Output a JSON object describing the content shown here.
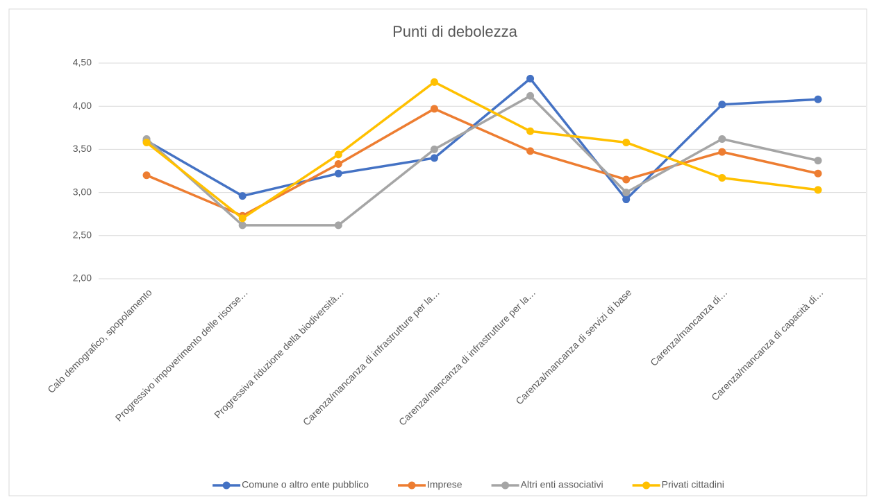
{
  "chart_data": {
    "type": "line",
    "title": "Punti di debolezza",
    "categories": [
      "Calo demografico, spopolamento",
      "Progressivo impoverimento delle risorse…",
      "Progressiva riduzione della biodiversità…",
      "Carenza/mancanza di infrastrutture per la…",
      "Carenza/mancanza di infrastrutture per la…",
      "Carenza/mancanza di servizi di base",
      "Carenza/mancanza di…",
      "Carenza/mancanza di capacità di…"
    ],
    "series": [
      {
        "name": "Comune o altro ente pubblico",
        "color": "#4472c4",
        "values": [
          3.6,
          2.96,
          3.22,
          3.4,
          4.32,
          2.92,
          4.02,
          4.08
        ]
      },
      {
        "name": "Imprese",
        "color": "#ed7d31",
        "values": [
          3.2,
          2.73,
          3.33,
          3.97,
          3.48,
          3.15,
          3.47,
          3.22
        ]
      },
      {
        "name": "Altri enti associativi",
        "color": "#a5a5a5",
        "values": [
          3.62,
          2.62,
          2.62,
          3.5,
          4.12,
          3.0,
          3.62,
          3.37
        ]
      },
      {
        "name": "Privati cittadini",
        "color": "#ffc000",
        "values": [
          3.58,
          2.7,
          3.44,
          4.28,
          3.71,
          3.58,
          3.17,
          3.03
        ]
      }
    ],
    "ylim": [
      2,
      4.5
    ],
    "yticks": [
      {
        "value": 2,
        "label": "2,00"
      },
      {
        "value": 2.5,
        "label": "2,50"
      },
      {
        "value": 3,
        "label": "3,00"
      },
      {
        "value": 3.5,
        "label": "3,50"
      },
      {
        "value": 4,
        "label": "4,00"
      },
      {
        "value": 4.5,
        "label": "4,50"
      }
    ],
    "grid": true,
    "legend": "bottom"
  }
}
